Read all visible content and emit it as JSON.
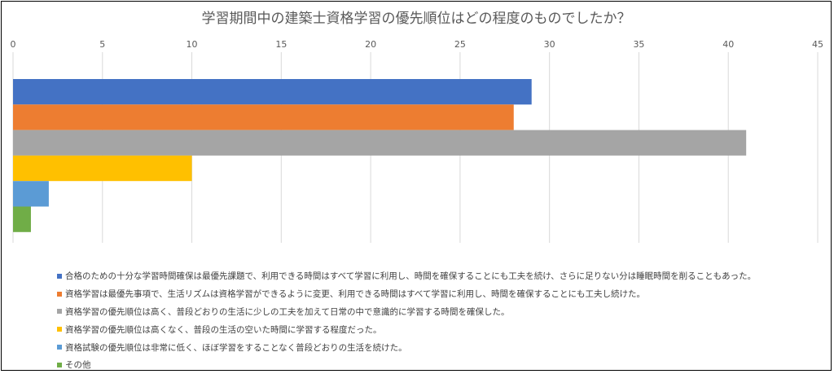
{
  "chart_data": {
    "type": "bar",
    "orientation": "horizontal",
    "title": "学習期間中の建築士資格学習の優先順位はどの程度のものでしたか？",
    "xlabel": "",
    "ylabel": "",
    "xlim": [
      0,
      45
    ],
    "xticks": [
      0,
      5,
      10,
      15,
      20,
      25,
      30,
      35,
      40,
      45
    ],
    "x_axis_position": "top",
    "grid": true,
    "legend_position": "bottom-left",
    "series": [
      {
        "name": "合格のための十分な学習時間確保は最優先課題で、利用できる時間はすべて学習に利用し、時間を確保することにも工夫を続け、さらに足りない分は睡眠時間を削ることもあった。",
        "value": 29,
        "color": "#4472C4"
      },
      {
        "name": "資格学習は最優先事項で、生活リズムは資格学習ができるように変更、利用できる時間はすべて学習に利用し、時間を確保することにも工夫し続けた。",
        "value": 28,
        "color": "#ED7D31"
      },
      {
        "name": "資格学習の優先順位は高く、普段どおりの生活に少しの工夫を加えて日常の中で意識的に学習する時間を確保した。",
        "value": 41,
        "color": "#A5A5A5"
      },
      {
        "name": "資格学習の優先順位は高くなく、普段の生活の空いた時間に学習する程度だった。",
        "value": 10,
        "color": "#FFC000"
      },
      {
        "name": "資格試験の優先順位は非常に低く、ほぼ学習をすることなく普段どおりの生活を続けた。",
        "value": 2,
        "color": "#5B9BD5"
      },
      {
        "name": "その他",
        "value": 1,
        "color": "#70AD47"
      }
    ]
  }
}
